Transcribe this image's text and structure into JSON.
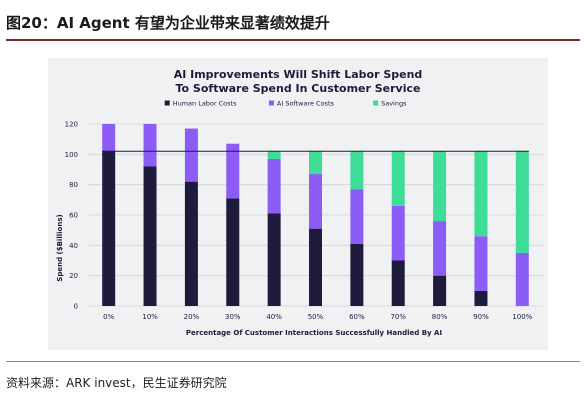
{
  "figure_title": "图20：AI Agent 有望为企业带来显著绩效提升",
  "source": "资料来源：ARK invest，民生证券研究院",
  "colors": {
    "human": "#1e1b3d",
    "software": "#8b5cf6",
    "savings": "#3ddc97",
    "rule_accent": "#7a2a2a"
  },
  "chart_data": {
    "type": "bar",
    "stacked": true,
    "title_lines": [
      "AI Improvements Will Shift Labor Spend",
      "To Software Spend In Customer Service"
    ],
    "categories": [
      "0%",
      "10%",
      "20%",
      "30%",
      "40%",
      "50%",
      "60%",
      "70%",
      "80%",
      "90%",
      "100%"
    ],
    "series": [
      {
        "name": "Human Labor Costs",
        "color": "#1e1b3d",
        "values": [
          102,
          92,
          82,
          71,
          61,
          51,
          41,
          30,
          20,
          10,
          0
        ]
      },
      {
        "name": "AI Software Costs",
        "color": "#8b5cf6",
        "values": [
          18,
          28,
          35,
          36,
          36,
          36,
          36,
          36,
          36,
          36,
          35
        ]
      },
      {
        "name": "Savings",
        "color": "#3ddc97",
        "values": [
          0,
          0,
          0,
          0,
          5,
          15,
          25,
          36,
          46,
          56,
          67
        ]
      }
    ],
    "reference_line": 102,
    "xlabel": "Percentage Of Customer Interactions Successfully Handled By AI",
    "ylabel": "Spend ($Billions)",
    "ylim": [
      0,
      120
    ],
    "yticks": [
      0,
      20,
      40,
      60,
      80,
      100,
      120
    ],
    "grid": true,
    "legend_position": "top"
  }
}
